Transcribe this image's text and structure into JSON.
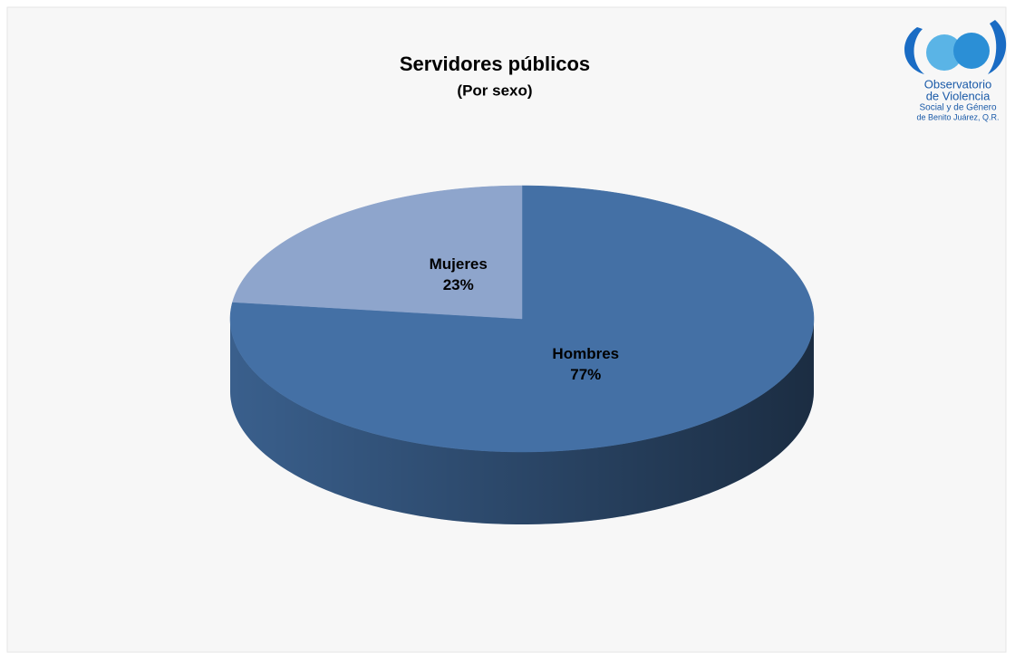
{
  "chart_data": {
    "type": "pie",
    "title": "Servidores públicos",
    "subtitle": "(Por sexo)",
    "categories": [
      "Hombres",
      "Mujeres"
    ],
    "values": [
      77,
      23
    ],
    "value_labels": [
      "77%",
      "23%"
    ],
    "colors": [
      "#4470a5",
      "#8ea5cc"
    ]
  },
  "logo": {
    "lines": [
      "Observatorio",
      "de Violencia",
      "Social y de Género",
      "de Benito Juárez, Q.R."
    ]
  }
}
